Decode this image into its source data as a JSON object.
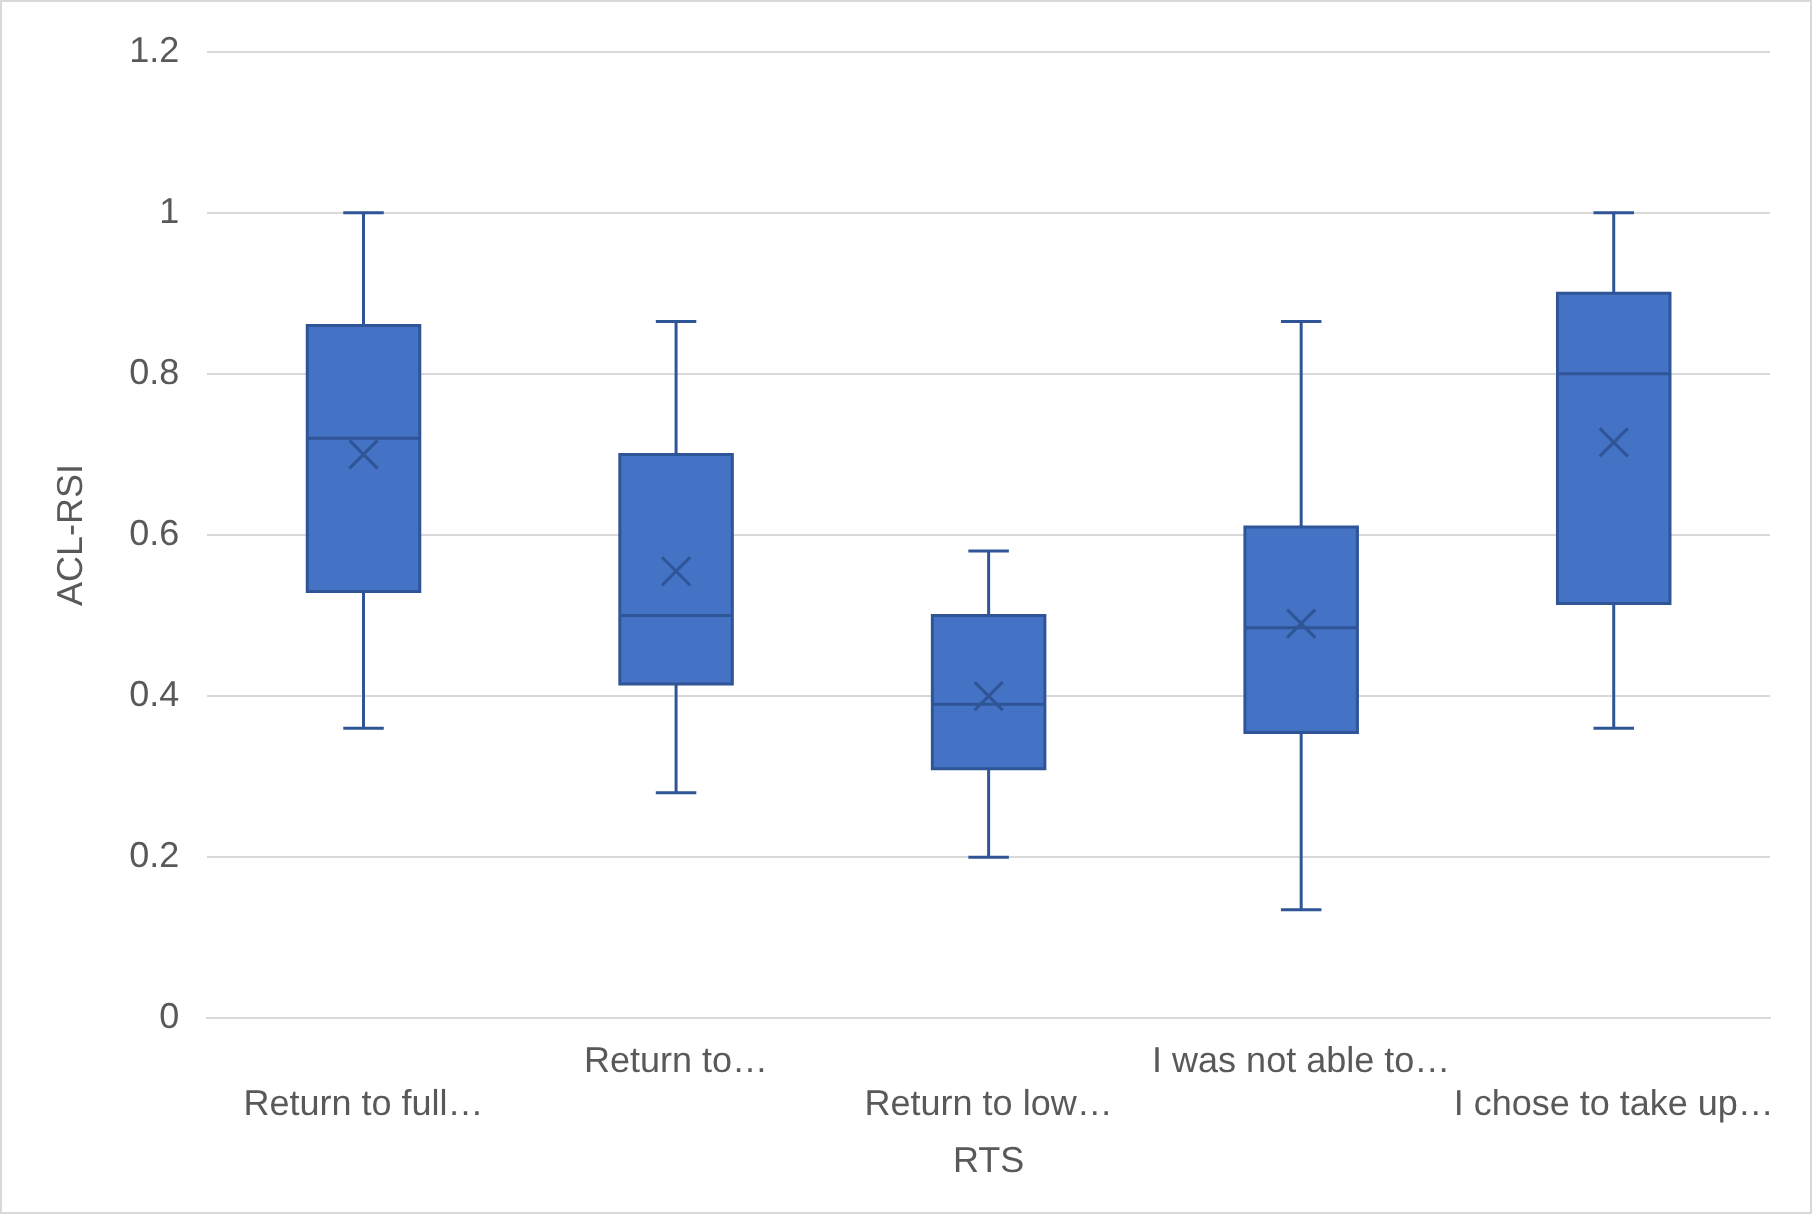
{
  "chart_data": {
    "type": "box",
    "xlabel": "RTS",
    "ylabel": "ACL-RSI",
    "categories": [
      "Return to full…",
      "Return to…",
      "Return to low…",
      "I was not able to…",
      "I chose to take up…"
    ],
    "color": "#4472c4",
    "boxes": [
      {
        "low": 0.36,
        "q1": 0.53,
        "median": 0.72,
        "q3": 0.86,
        "high": 1.0,
        "mean": 0.7
      },
      {
        "low": 0.28,
        "q1": 0.415,
        "median": 0.5,
        "q3": 0.7,
        "high": 0.865,
        "mean": 0.555
      },
      {
        "low": 0.2,
        "q1": 0.31,
        "median": 0.39,
        "q3": 0.5,
        "high": 0.58,
        "mean": 0.4
      },
      {
        "low": 0.135,
        "q1": 0.355,
        "median": 0.485,
        "q3": 0.61,
        "high": 0.865,
        "mean": 0.49
      },
      {
        "low": 0.36,
        "q1": 0.515,
        "median": 0.8,
        "q3": 0.9,
        "high": 1.0,
        "mean": 0.715
      }
    ],
    "ylim": [
      0,
      1.2
    ],
    "yticks": [
      0,
      0.2,
      0.4,
      0.6,
      0.8,
      1,
      1.2
    ],
    "grid": "y",
    "legend": false
  }
}
